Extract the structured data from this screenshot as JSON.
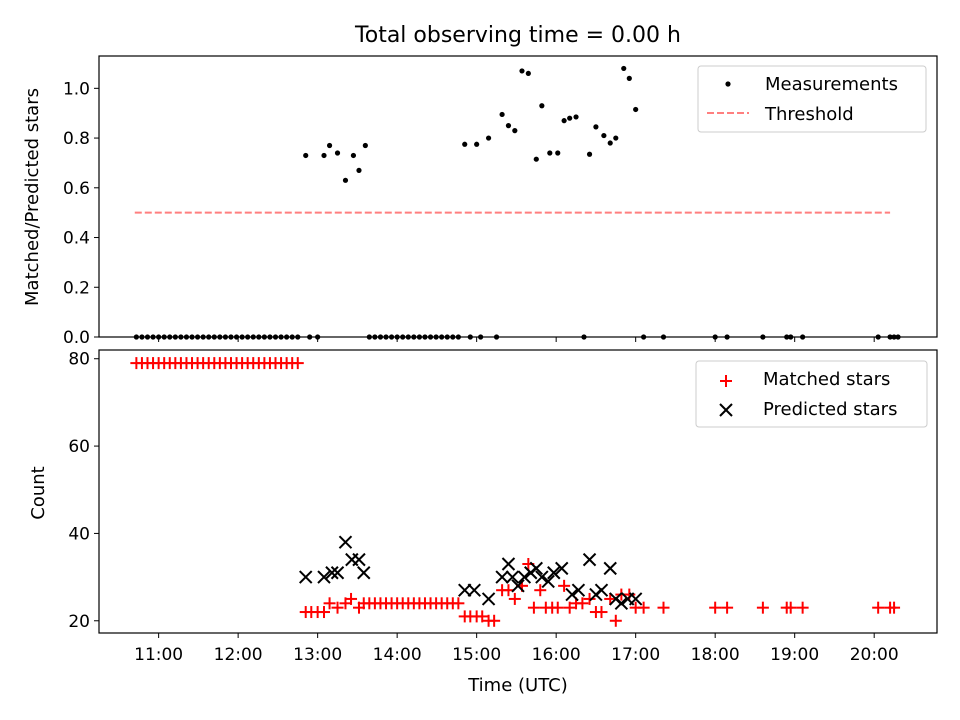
{
  "chart_data": [
    {
      "type": "scatter",
      "title": "Total observing time = 0.00 h",
      "xlabel": "",
      "ylabel": "Matched/Predicted stars",
      "xlim": [
        10.25,
        20.79
      ],
      "ylim": [
        0.0,
        1.13
      ],
      "yticks": [
        0.0,
        0.2,
        0.4,
        0.6,
        0.8,
        1.0
      ],
      "ytick_labels": [
        "0.0",
        "0.2",
        "0.4",
        "0.6",
        "0.8",
        "1.0"
      ],
      "grid": false,
      "legend_position": "top-right",
      "legend": [
        {
          "label": "Measurements",
          "marker": "dot",
          "color": "#000000"
        },
        {
          "label": "Threshold",
          "marker": "dashed-line",
          "color": "#ff7f7f"
        }
      ],
      "threshold": {
        "x": [
          10.7,
          20.2
        ],
        "y": 0.5,
        "color": "#ff7f7f"
      },
      "series": [
        {
          "name": "Measurements",
          "color": "#000000",
          "x": [
            10.72,
            10.79,
            10.86,
            10.93,
            11.0,
            11.07,
            11.14,
            11.21,
            11.28,
            11.35,
            11.42,
            11.49,
            11.56,
            11.63,
            11.7,
            11.77,
            11.84,
            11.91,
            11.98,
            12.05,
            12.12,
            12.19,
            12.26,
            12.33,
            12.4,
            12.47,
            12.54,
            12.61,
            12.68,
            12.75,
            12.9,
            13.0,
            13.65,
            13.72,
            13.79,
            13.86,
            13.93,
            14.0,
            14.07,
            14.14,
            14.21,
            14.28,
            14.35,
            14.42,
            14.49,
            14.56,
            14.63,
            14.7,
            14.77,
            14.92,
            15.05,
            15.25,
            16.35,
            17.1,
            17.35,
            18.0,
            18.15,
            18.6,
            18.9,
            18.95,
            19.1,
            20.05,
            20.2,
            20.25,
            20.3,
            12.85,
            13.08,
            13.15,
            13.25,
            13.35,
            13.45,
            13.52,
            13.6,
            14.85,
            15.0,
            15.15,
            15.32,
            15.4,
            15.48,
            15.57,
            15.65,
            15.75,
            15.82,
            15.92,
            16.02,
            16.1,
            16.17,
            16.25,
            16.42,
            16.5,
            16.6,
            16.68,
            16.75,
            16.85,
            16.92,
            17.0
          ],
          "y": [
            0,
            0,
            0,
            0,
            0,
            0,
            0,
            0,
            0,
            0,
            0,
            0,
            0,
            0,
            0,
            0,
            0,
            0,
            0,
            0,
            0,
            0,
            0,
            0,
            0,
            0,
            0,
            0,
            0,
            0,
            0,
            0,
            0,
            0,
            0,
            0,
            0,
            0,
            0,
            0,
            0,
            0,
            0,
            0,
            0,
            0,
            0,
            0,
            0,
            0,
            0,
            0,
            0,
            0,
            0,
            0,
            0,
            0,
            0,
            0,
            0,
            0,
            0,
            0,
            0,
            0.73,
            0.73,
            0.77,
            0.74,
            0.63,
            0.73,
            0.67,
            0.77,
            0.775,
            0.775,
            0.8,
            0.895,
            0.85,
            0.83,
            1.07,
            1.06,
            0.715,
            0.93,
            0.74,
            0.74,
            0.87,
            0.88,
            0.885,
            0.735,
            0.845,
            0.81,
            0.78,
            0.8,
            1.08,
            1.04,
            0.915
          ]
        }
      ]
    },
    {
      "type": "scatter",
      "title": "",
      "xlabel": "Time (UTC)",
      "ylabel": "Count",
      "xlim": [
        10.25,
        20.79
      ],
      "ylim": [
        17.2,
        82.0
      ],
      "yticks": [
        20,
        40,
        60,
        80
      ],
      "ytick_labels": [
        "20",
        "40",
        "60",
        "80"
      ],
      "xticks": [
        11,
        12,
        13,
        14,
        15,
        16,
        17,
        18,
        19,
        20
      ],
      "xtick_labels": [
        "11:00",
        "12:00",
        "13:00",
        "14:00",
        "15:00",
        "16:00",
        "17:00",
        "18:00",
        "19:00",
        "20:00"
      ],
      "grid": false,
      "legend_position": "top-right",
      "legend": [
        {
          "label": "Matched stars",
          "marker": "plus",
          "color": "#ff0000"
        },
        {
          "label": "Predicted stars",
          "marker": "x",
          "color": "#000000"
        }
      ],
      "series": [
        {
          "name": "Matched stars",
          "color": "#ff0000",
          "x": [
            10.72,
            10.79,
            10.86,
            10.93,
            11.0,
            11.07,
            11.14,
            11.21,
            11.28,
            11.35,
            11.42,
            11.49,
            11.56,
            11.63,
            11.7,
            11.77,
            11.84,
            11.91,
            11.98,
            12.05,
            12.12,
            12.19,
            12.26,
            12.33,
            12.4,
            12.47,
            12.54,
            12.61,
            12.68,
            12.75,
            12.85,
            12.92,
            13.0,
            13.08,
            13.15,
            13.25,
            13.35,
            13.42,
            13.52,
            13.58,
            13.65,
            13.72,
            13.79,
            13.86,
            13.93,
            14.0,
            14.07,
            14.14,
            14.21,
            14.28,
            14.35,
            14.42,
            14.49,
            14.56,
            14.63,
            14.7,
            14.77,
            14.85,
            14.92,
            15.0,
            15.07,
            15.15,
            15.22,
            15.32,
            15.4,
            15.48,
            15.57,
            15.65,
            15.72,
            15.8,
            15.87,
            15.95,
            16.02,
            16.1,
            16.17,
            16.25,
            16.33,
            16.42,
            16.5,
            16.57,
            16.68,
            16.75,
            16.82,
            16.92,
            17.0,
            17.1,
            17.35,
            18.0,
            18.15,
            18.6,
            18.9,
            18.95,
            19.1,
            20.05,
            20.2,
            20.25
          ],
          "y": [
            79,
            79,
            79,
            79,
            79,
            79,
            79,
            79,
            79,
            79,
            79,
            79,
            79,
            79,
            79,
            79,
            79,
            79,
            79,
            79,
            79,
            79,
            79,
            79,
            79,
            79,
            79,
            79,
            79,
            79,
            22,
            22,
            22,
            22,
            24,
            23,
            24,
            25,
            23,
            24,
            24,
            24,
            24,
            24,
            24,
            24,
            24,
            24,
            24,
            24,
            24,
            24,
            24,
            24,
            24,
            24,
            24,
            21,
            21,
            21,
            21,
            20,
            20,
            27,
            27,
            25,
            28,
            33,
            23,
            27,
            23,
            23,
            23,
            28,
            23,
            24,
            24,
            25,
            22,
            22,
            25,
            20,
            26,
            26,
            23,
            23,
            23,
            23,
            23,
            23,
            23,
            23,
            23,
            23,
            23,
            23
          ]
        },
        {
          "name": "Predicted stars",
          "color": "#000000",
          "x": [
            12.85,
            13.08,
            13.18,
            13.25,
            13.35,
            13.43,
            13.52,
            13.58,
            14.85,
            14.97,
            15.15,
            15.32,
            15.4,
            15.45,
            15.52,
            15.6,
            15.68,
            15.75,
            15.82,
            15.9,
            15.97,
            16.07,
            16.2,
            16.28,
            16.42,
            16.5,
            16.57,
            16.68,
            16.75,
            16.82,
            16.9,
            17.0
          ],
          "y": [
            30,
            30,
            31,
            31,
            38,
            34,
            34,
            31,
            27,
            27,
            25,
            30,
            33,
            30,
            28,
            30,
            31,
            32,
            30,
            29,
            31,
            32,
            26,
            27,
            34,
            26,
            27,
            32,
            25,
            24,
            25,
            25
          ]
        }
      ]
    }
  ]
}
